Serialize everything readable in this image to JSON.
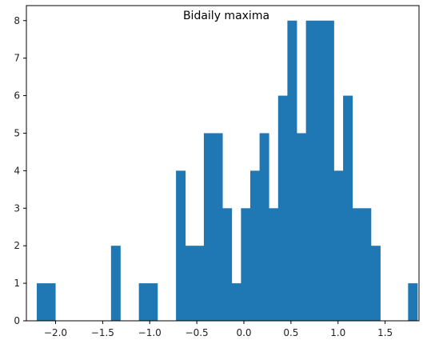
{
  "chart_data": {
    "type": "bar",
    "title": "Bidaily maxima",
    "xlabel": "",
    "ylabel": "",
    "xlim": [
      -2.31,
      1.86
    ],
    "ylim": [
      0,
      8.4
    ],
    "grid": false,
    "colors": {
      "bar": "#1f77b4"
    },
    "x_ticks": [
      {
        "value": -2.0,
        "label": "−2.0"
      },
      {
        "value": -1.5,
        "label": "−1.5"
      },
      {
        "value": -1.0,
        "label": "−1.0"
      },
      {
        "value": -0.5,
        "label": "−0.5"
      },
      {
        "value": 0.0,
        "label": "0.0"
      },
      {
        "value": 0.5,
        "label": "0.5"
      },
      {
        "value": 1.0,
        "label": "1.0"
      },
      {
        "value": 1.5,
        "label": "1.5"
      }
    ],
    "y_ticks": [
      {
        "value": 0,
        "label": "0"
      },
      {
        "value": 1,
        "label": "1"
      },
      {
        "value": 2,
        "label": "2"
      },
      {
        "value": 3,
        "label": "3"
      },
      {
        "value": 4,
        "label": "4"
      },
      {
        "value": 5,
        "label": "5"
      },
      {
        "value": 6,
        "label": "6"
      },
      {
        "value": 7,
        "label": "7"
      },
      {
        "value": 8,
        "label": "8"
      }
    ],
    "bins": {
      "start": -2.2,
      "width": 0.0986,
      "counts": [
        1,
        1,
        0,
        0,
        0,
        0,
        0,
        0,
        2,
        0,
        0,
        1,
        1,
        0,
        0,
        4,
        2,
        2,
        5,
        5,
        3,
        1,
        3,
        4,
        5,
        3,
        6,
        8,
        5,
        8,
        8,
        8,
        4,
        6,
        3,
        3,
        2,
        0,
        0,
        0,
        1
      ]
    }
  }
}
